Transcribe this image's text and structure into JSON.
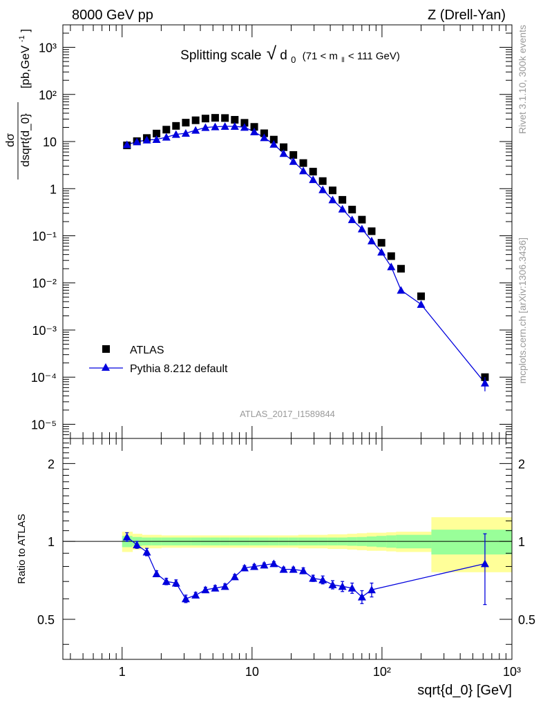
{
  "header": {
    "left": "8000 GeV pp",
    "right": "Z (Drell-Yan)"
  },
  "side_labels": {
    "rivet": "Rivet 3.1.10,  300k events",
    "mcplots": "mcplots.cern.ch [arXiv:1306.3436]"
  },
  "chart_data": [
    {
      "type": "scatter",
      "panel": "main",
      "title": "Splitting scale",
      "title_symbol": "d",
      "title_symbol_sub": "0",
      "title_range_left": "(71 < m",
      "title_range_sub": "ll",
      "title_range_right": " < 111 GeV)",
      "ylabel_num": "dσ",
      "ylabel_den": "dsqrt{d_0}",
      "ylabel_units": "[pb,GeV",
      "ylabel_units_sup": "-1",
      "ylabel_units_end": "]",
      "xscale": "log",
      "yscale": "log",
      "xlim": [
        0.35,
        1000
      ],
      "ylim": [
        5e-06,
        3000
      ],
      "x_tick_labels": [
        "1",
        "10",
        "10²",
        "10³"
      ],
      "y_tick_labels": [
        "10⁻⁵",
        "10⁻⁴",
        "10⁻³",
        "10⁻²",
        "10⁻¹",
        "1",
        "10",
        "10²",
        "10³"
      ],
      "legend_position": "bottom-left",
      "watermark": "ATLAS_2017_I1589844",
      "series": [
        {
          "name": "ATLAS",
          "marker": "square",
          "color": "#000000",
          "x": [
            1.09,
            1.3,
            1.55,
            1.84,
            2.19,
            2.6,
            3.09,
            3.68,
            4.38,
            5.2,
            6.19,
            7.36,
            8.75,
            10.4,
            12.4,
            14.7,
            17.5,
            20.8,
            24.8,
            29.5,
            35.0,
            41.7,
            49.6,
            58.9,
            70.1,
            83.3,
            99.1,
            117.8,
            140.1,
            200.0,
            620.0
          ],
          "y": [
            8.3,
            10.2,
            11.9,
            14.8,
            17.9,
            21.5,
            25.2,
            28.3,
            30.8,
            31.9,
            31.6,
            29.0,
            25.0,
            20.5,
            15.0,
            11.0,
            7.6,
            5.2,
            3.5,
            2.3,
            1.45,
            0.92,
            0.58,
            0.36,
            0.22,
            0.125,
            0.071,
            0.037,
            0.02,
            0.0052,
            0.0001
          ]
        },
        {
          "name": "Pythia 8.212 default",
          "marker": "triangle",
          "line": true,
          "color": "#0000dd",
          "x": [
            1.09,
            1.3,
            1.55,
            1.84,
            2.19,
            2.6,
            3.09,
            3.68,
            4.38,
            5.2,
            6.19,
            7.36,
            8.75,
            10.4,
            12.4,
            14.7,
            17.5,
            20.8,
            24.8,
            29.5,
            35.0,
            41.7,
            49.6,
            58.9,
            70.1,
            83.3,
            99.1,
            117.8,
            140.1,
            200.0,
            620.0
          ],
          "y": [
            8.6,
            9.9,
            10.8,
            11.1,
            12.4,
            14.2,
            15.0,
            17.4,
            19.9,
            20.6,
            21.0,
            21.0,
            20.1,
            16.1,
            12.1,
            8.8,
            5.6,
            3.8,
            2.4,
            1.56,
            0.95,
            0.58,
            0.37,
            0.22,
            0.14,
            0.078,
            0.045,
            0.022,
            0.007,
            0.0035,
            7.5e-05
          ],
          "y_err": [
            0,
            0,
            0,
            0,
            0,
            0,
            0,
            0,
            0,
            0,
            0,
            0,
            0,
            0,
            0,
            0,
            0,
            0,
            0,
            0,
            0,
            0,
            0,
            0,
            0,
            0,
            0,
            0,
            0,
            0,
            2.5e-05
          ]
        }
      ]
    },
    {
      "type": "scatter",
      "panel": "ratio",
      "ylabel": "Ratio to ATLAS",
      "xlabel": "sqrt{d_0} [GeV]",
      "xscale": "log",
      "xlim": [
        0.35,
        1000
      ],
      "ylim": [
        0.35,
        2.5
      ],
      "y_tick_values": [
        0.5,
        1,
        2
      ],
      "y_tick_labels": [
        "0.5",
        "1",
        "2"
      ],
      "bands": {
        "x_edges": [
          1.0,
          1.2,
          1.42,
          1.69,
          2.0,
          2.39,
          2.84,
          3.38,
          4.02,
          4.78,
          5.68,
          6.76,
          8.04,
          9.56,
          11.4,
          13.5,
          16.1,
          19.1,
          22.7,
          27.0,
          32.1,
          38.2,
          45.4,
          54.0,
          64.2,
          76.4,
          90.8,
          108.0,
          128.4,
          240.0,
          1000.0
        ],
        "stat_half_width": [
          0.05,
          0.04,
          0.035,
          0.035,
          0.035,
          0.035,
          0.035,
          0.035,
          0.035,
          0.035,
          0.035,
          0.035,
          0.035,
          0.035,
          0.035,
          0.035,
          0.035,
          0.035,
          0.035,
          0.035,
          0.035,
          0.035,
          0.035,
          0.038,
          0.04,
          0.045,
          0.05,
          0.055,
          0.06,
          0.11
        ],
        "total_half_width": [
          0.09,
          0.07,
          0.06,
          0.06,
          0.055,
          0.055,
          0.055,
          0.055,
          0.055,
          0.055,
          0.055,
          0.055,
          0.055,
          0.055,
          0.055,
          0.055,
          0.055,
          0.055,
          0.06,
          0.06,
          0.06,
          0.065,
          0.065,
          0.07,
          0.075,
          0.08,
          0.08,
          0.085,
          0.09,
          0.24
        ],
        "stat_color": "#99ff99",
        "total_color": "#ffff99"
      },
      "series": [
        {
          "name": "Pythia 8.212 default / ATLAS",
          "marker": "triangle",
          "line": true,
          "color": "#0000dd",
          "x": [
            1.09,
            1.3,
            1.55,
            1.84,
            2.19,
            2.6,
            3.09,
            3.68,
            4.38,
            5.2,
            6.19,
            7.36,
            8.75,
            10.4,
            12.4,
            14.7,
            17.5,
            20.8,
            24.8,
            29.5,
            35.0,
            41.7,
            49.6,
            58.9,
            70.1,
            83.3,
            620.0
          ],
          "y": [
            1.04,
            0.97,
            0.91,
            0.75,
            0.7,
            0.69,
            0.6,
            0.62,
            0.65,
            0.66,
            0.67,
            0.73,
            0.79,
            0.8,
            0.81,
            0.82,
            0.78,
            0.78,
            0.77,
            0.72,
            0.71,
            0.68,
            0.67,
            0.66,
            0.61,
            0.65,
            0.82
          ],
          "y_err": [
            0.04,
            0.03,
            0.03,
            0.02,
            0.02,
            0.02,
            0.02,
            0.015,
            0.015,
            0.015,
            0.015,
            0.015,
            0.015,
            0.015,
            0.015,
            0.015,
            0.015,
            0.015,
            0.02,
            0.02,
            0.025,
            0.025,
            0.03,
            0.03,
            0.035,
            0.04,
            0.25
          ]
        }
      ]
    }
  ]
}
